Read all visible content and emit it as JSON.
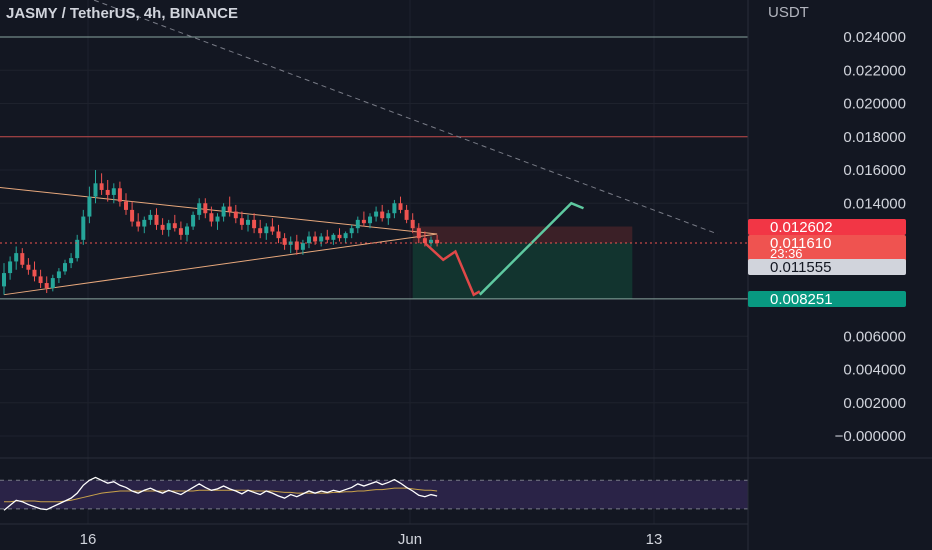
{
  "header": {
    "symbol": "JASMY / TetherUS, 4h, BINANCE"
  },
  "colors": {
    "background": "#131722",
    "grid": "#1e222d",
    "text": "#d1d4dc",
    "up": "#26a69a",
    "down": "#ef5350",
    "triangle": "#e8a87c",
    "stop_zone": "#3b2027",
    "target_zone": "#12342f",
    "rsi_band": "#2a2347",
    "rsi_line": "#ffffff",
    "rsi_ma": "#c9a24a"
  },
  "chart_data": {
    "type": "candlestick",
    "title": "JASMY / TetherUS, 4h, BINANCE",
    "y_axis": {
      "unit": "USDT",
      "ticks": [
        "0.024000",
        "0.022000",
        "0.020000",
        "0.018000",
        "0.016000",
        "0.014000",
        "0.006000",
        "0.004000",
        "0.002000",
        "−0.000000"
      ],
      "range": [
        -0.0005,
        0.0255
      ]
    },
    "x_axis": {
      "ticks": [
        "16",
        "Jun",
        "13"
      ]
    },
    "price_labels": [
      {
        "text": "0.012602",
        "color": "#f23645",
        "value": 0.012602
      },
      {
        "text": "0.011610",
        "color": "#ef5350",
        "value": 0.01161
      },
      {
        "text": "23:36",
        "color": "#ef5350",
        "value": 0.01161
      },
      {
        "text": "0.011555",
        "color": "#d1d4dc",
        "value": 0.011555
      },
      {
        "text": "0.008251",
        "color": "#089981",
        "value": 0.008251
      }
    ],
    "horizontal_lines": [
      {
        "value": 0.024,
        "color": "#8aa6a0"
      },
      {
        "value": 0.018,
        "color": "#c24a4a"
      },
      {
        "value": 0.00825,
        "color": "#8aa6a0"
      }
    ],
    "candles": [
      [
        0.009,
        0.0104,
        0.0085,
        0.0098
      ],
      [
        0.0098,
        0.0108,
        0.0094,
        0.0105
      ],
      [
        0.0105,
        0.0114,
        0.01,
        0.011
      ],
      [
        0.011,
        0.0113,
        0.0101,
        0.0103
      ],
      [
        0.0103,
        0.0107,
        0.0097,
        0.01
      ],
      [
        0.01,
        0.0105,
        0.0093,
        0.0096
      ],
      [
        0.0096,
        0.01,
        0.0089,
        0.0092
      ],
      [
        0.0092,
        0.0096,
        0.0086,
        0.0089
      ],
      [
        0.0089,
        0.0097,
        0.0087,
        0.0095
      ],
      [
        0.0095,
        0.0101,
        0.0092,
        0.0099
      ],
      [
        0.0099,
        0.0106,
        0.0097,
        0.0104
      ],
      [
        0.0104,
        0.011,
        0.0101,
        0.0107
      ],
      [
        0.0107,
        0.0121,
        0.0105,
        0.0118
      ],
      [
        0.0118,
        0.0136,
        0.0115,
        0.0132
      ],
      [
        0.0132,
        0.015,
        0.0128,
        0.0144
      ],
      [
        0.0144,
        0.016,
        0.014,
        0.0152
      ],
      [
        0.0152,
        0.0158,
        0.0145,
        0.0148
      ],
      [
        0.0148,
        0.0154,
        0.0141,
        0.0145
      ],
      [
        0.0145,
        0.0152,
        0.014,
        0.0149
      ],
      [
        0.0149,
        0.0153,
        0.0138,
        0.0141
      ],
      [
        0.0141,
        0.0146,
        0.0133,
        0.0136
      ],
      [
        0.0136,
        0.0141,
        0.0126,
        0.0129
      ],
      [
        0.0129,
        0.0134,
        0.0123,
        0.0126
      ],
      [
        0.0126,
        0.0132,
        0.0122,
        0.013
      ],
      [
        0.013,
        0.0136,
        0.0127,
        0.0133
      ],
      [
        0.0133,
        0.0137,
        0.0124,
        0.0127
      ],
      [
        0.0127,
        0.0131,
        0.0121,
        0.0124
      ],
      [
        0.0124,
        0.013,
        0.012,
        0.0128
      ],
      [
        0.0128,
        0.0133,
        0.0123,
        0.0125
      ],
      [
        0.0125,
        0.0129,
        0.0118,
        0.0121
      ],
      [
        0.0121,
        0.0128,
        0.0117,
        0.0126
      ],
      [
        0.0126,
        0.0135,
        0.0124,
        0.0133
      ],
      [
        0.0133,
        0.0143,
        0.013,
        0.014
      ],
      [
        0.014,
        0.0143,
        0.0131,
        0.0134
      ],
      [
        0.0134,
        0.0138,
        0.0126,
        0.0129
      ],
      [
        0.0129,
        0.0134,
        0.0124,
        0.0132
      ],
      [
        0.0132,
        0.014,
        0.0129,
        0.0138
      ],
      [
        0.0138,
        0.0144,
        0.0132,
        0.0135
      ],
      [
        0.0135,
        0.0139,
        0.0128,
        0.0131
      ],
      [
        0.0131,
        0.0135,
        0.0124,
        0.0127
      ],
      [
        0.0127,
        0.0133,
        0.0123,
        0.013
      ],
      [
        0.013,
        0.0134,
        0.0122,
        0.0125
      ],
      [
        0.0125,
        0.013,
        0.0119,
        0.0122
      ],
      [
        0.0122,
        0.0128,
        0.0118,
        0.0126
      ],
      [
        0.0126,
        0.0131,
        0.0121,
        0.0123
      ],
      [
        0.0123,
        0.0127,
        0.0116,
        0.0119
      ],
      [
        0.0119,
        0.0122,
        0.0112,
        0.0115
      ],
      [
        0.0115,
        0.012,
        0.011,
        0.0117
      ],
      [
        0.0117,
        0.0121,
        0.0109,
        0.0112
      ],
      [
        0.0112,
        0.0118,
        0.0109,
        0.0116
      ],
      [
        0.0116,
        0.0123,
        0.0113,
        0.012
      ],
      [
        0.012,
        0.0123,
        0.0115,
        0.0117
      ],
      [
        0.0117,
        0.0122,
        0.0114,
        0.012
      ],
      [
        0.012,
        0.0124,
        0.0116,
        0.0118
      ],
      [
        0.0118,
        0.0122,
        0.0115,
        0.0121
      ],
      [
        0.0121,
        0.0125,
        0.0117,
        0.0119
      ],
      [
        0.0119,
        0.0123,
        0.0116,
        0.0122
      ],
      [
        0.0122,
        0.0127,
        0.0119,
        0.0125
      ],
      [
        0.0125,
        0.0132,
        0.0122,
        0.013
      ],
      [
        0.013,
        0.0135,
        0.0126,
        0.0128
      ],
      [
        0.0128,
        0.0134,
        0.0125,
        0.0132
      ],
      [
        0.0132,
        0.0138,
        0.0129,
        0.0135
      ],
      [
        0.0135,
        0.0139,
        0.0129,
        0.0131
      ],
      [
        0.0131,
        0.0136,
        0.0127,
        0.0134
      ],
      [
        0.0134,
        0.0142,
        0.0131,
        0.014
      ],
      [
        0.014,
        0.0144,
        0.0134,
        0.0136
      ],
      [
        0.0136,
        0.0139,
        0.0128,
        0.013
      ],
      [
        0.013,
        0.0134,
        0.0122,
        0.0125
      ],
      [
        0.0125,
        0.0128,
        0.0116,
        0.0119
      ],
      [
        0.0119,
        0.0123,
        0.0114,
        0.0116
      ],
      [
        0.0116,
        0.012,
        0.0114,
        0.0118
      ],
      [
        0.0118,
        0.0121,
        0.0114,
        0.0116
      ]
    ],
    "projection_path": [
      [
        69,
        0.01161
      ],
      [
        72,
        0.0106
      ],
      [
        74,
        0.0111
      ],
      [
        77,
        0.0085
      ],
      [
        78,
        0.0087
      ]
    ],
    "rebound_path": [
      [
        78,
        0.0085
      ],
      [
        93,
        0.014
      ],
      [
        95,
        0.0137
      ]
    ],
    "trendlines": [
      {
        "style": "dashed",
        "from": [
          12,
          0.0266
        ],
        "to": [
          117,
          0.01215
        ]
      },
      {
        "style": "triangle-upper",
        "from": [
          -2,
          0.015
        ],
        "to": [
          71,
          0.01215
        ]
      },
      {
        "style": "triangle-lower",
        "from": [
          0,
          0.0085
        ],
        "to": [
          71,
          0.01215
        ]
      }
    ],
    "zones": [
      {
        "name": "stop",
        "from_index": 67,
        "to_index": 103,
        "top": 0.0126,
        "bottom": 0.01161
      },
      {
        "name": "target",
        "from_index": 67,
        "to_index": 103,
        "top": 0.01161,
        "bottom": 0.00825
      }
    ],
    "rsi": {
      "upper": 70,
      "lower": 30,
      "values": [
        28,
        35,
        42,
        40,
        36,
        33,
        30,
        29,
        33,
        37,
        41,
        45,
        52,
        63,
        70,
        74,
        70,
        66,
        68,
        63,
        60,
        55,
        52,
        56,
        59,
        55,
        52,
        56,
        53,
        50,
        55,
        60,
        65,
        60,
        56,
        58,
        62,
        58,
        55,
        51,
        56,
        53,
        50,
        55,
        52,
        48,
        45,
        50,
        47,
        51,
        55,
        52,
        55,
        53,
        56,
        54,
        57,
        60,
        65,
        62,
        65,
        68,
        64,
        67,
        71,
        66,
        60,
        55,
        49,
        47,
        50,
        48
      ],
      "ma": [
        40,
        40,
        41,
        41,
        41,
        41,
        40,
        40,
        40,
        40,
        41,
        42,
        44,
        46,
        48,
        50,
        52,
        53,
        54,
        55,
        55,
        55,
        55,
        55,
        55,
        55,
        55,
        55,
        55,
        55,
        55,
        55,
        56,
        56,
        56,
        56,
        56,
        56,
        56,
        56,
        56,
        55,
        55,
        55,
        55,
        54,
        53,
        53,
        52,
        52,
        52,
        52,
        52,
        52,
        53,
        53,
        54,
        54,
        55,
        55,
        56,
        57,
        57,
        58,
        59,
        59,
        59,
        58,
        57,
        56,
        56,
        55
      ]
    }
  }
}
